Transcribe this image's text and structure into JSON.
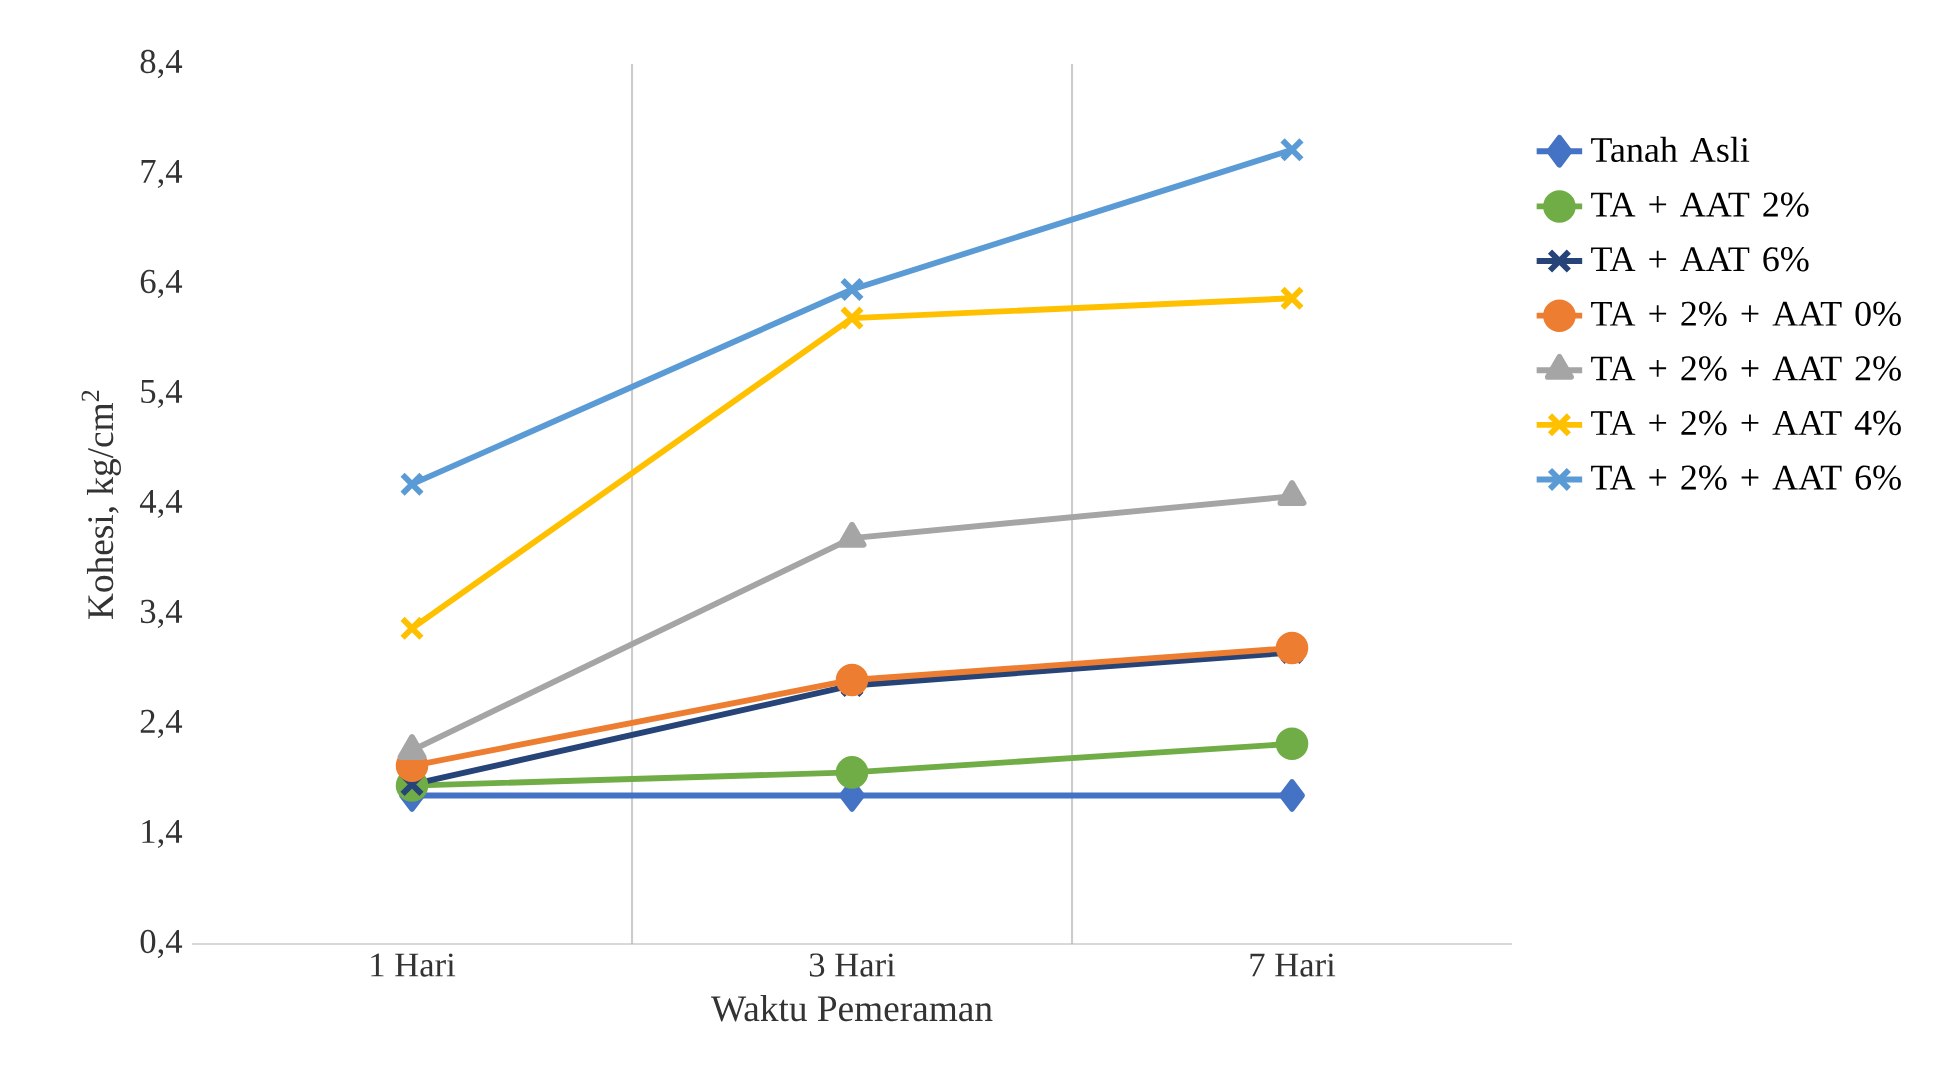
{
  "chart_data": {
    "type": "line",
    "xlabel": "Waktu Pemeraman",
    "ylabel": "Kohesi, kg/cm$^{2}$",
    "categories": [
      "1 Hari",
      "3 Hari",
      "7 Hari"
    ],
    "ylim": [
      0.4,
      8.4
    ],
    "yticks": [
      {
        "value": 0.4,
        "label": "0,4"
      },
      {
        "value": 1.4,
        "label": "1,4"
      },
      {
        "value": 2.4,
        "label": "2,4"
      },
      {
        "value": 3.4,
        "label": "3,4"
      },
      {
        "value": 4.4,
        "label": "4,4"
      },
      {
        "value": 5.4,
        "label": "5,4"
      },
      {
        "value": 6.4,
        "label": "6,4"
      },
      {
        "value": 7.4,
        "label": "7,4"
      },
      {
        "value": 8.4,
        "label": "8,4"
      }
    ],
    "grid": "x",
    "legend": "right",
    "series": [
      {
        "name": "Tanah Asli",
        "color": "#4472c4",
        "marker": "diamond",
        "values": [
          1.75,
          1.75,
          1.75
        ]
      },
      {
        "name": "TA + AAT 2%",
        "color": "#70ad47",
        "marker": "circle",
        "values": [
          1.84,
          1.96,
          2.22
        ]
      },
      {
        "name": "TA +  AAT 6%",
        "color": "#264478",
        "marker": "cross",
        "values": [
          1.85,
          2.75,
          3.05
        ]
      },
      {
        "name": "TA + 2% + AAT 0%",
        "color": "#ed7d31",
        "marker": "circle",
        "values": [
          2.02,
          2.8,
          3.09
        ]
      },
      {
        "name": "TA + 2% + AAT 2%",
        "color": "#a5a5a5",
        "marker": "triangle",
        "values": [
          2.16,
          4.09,
          4.47
        ]
      },
      {
        "name": "TA + 2% + AAT 4%",
        "color": "#ffc000",
        "marker": "cross",
        "values": [
          3.27,
          6.09,
          6.27
        ]
      },
      {
        "name": "TA + 2% + AAT 6%",
        "color": "#5b9bd5",
        "marker": "cross",
        "values": [
          4.58,
          6.35,
          7.62
        ]
      }
    ]
  }
}
